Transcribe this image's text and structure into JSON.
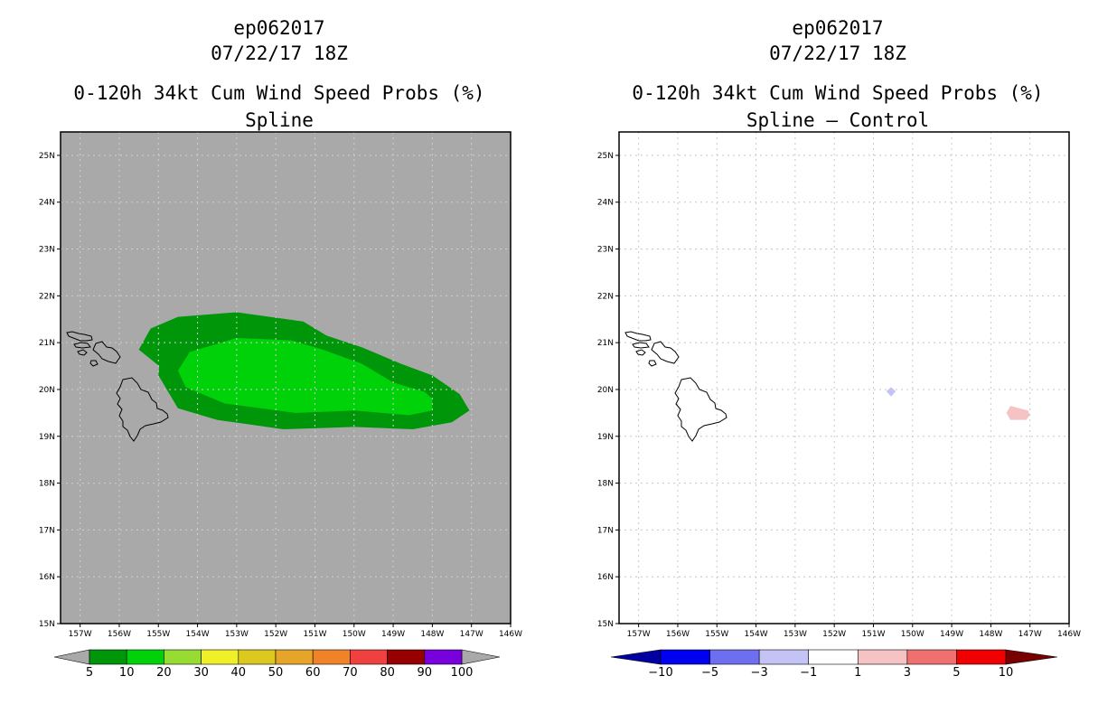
{
  "left_panel": {
    "line1": "ep062017",
    "line2": "07/22/17 18Z",
    "line3": "0-120h 34kt Cum Wind Speed Probs (%)",
    "line4": "Spline"
  },
  "right_panel": {
    "line1": "ep062017",
    "line2": "07/22/17 18Z",
    "line3": "0-120h 34kt Cum Wind Speed Probs (%)",
    "line4": "Spline – Control"
  },
  "chart_data": [
    {
      "type": "heatmap",
      "title": "0-120h 34kt Cum Wind Speed Probs (%) Spline",
      "x_ticks": [
        "157W",
        "156W",
        "155W",
        "154W",
        "153W",
        "152W",
        "151W",
        "150W",
        "149W",
        "148W",
        "147W",
        "146W"
      ],
      "y_ticks": [
        "15N",
        "16N",
        "17N",
        "18N",
        "19N",
        "20N",
        "21N",
        "22N",
        "23N",
        "24N",
        "25N"
      ],
      "xlim": [
        -157.5,
        -146
      ],
      "ylim": [
        15,
        25.5
      ],
      "grid": true,
      "background": "#a9a9a9",
      "colorbar": {
        "labels": [
          "5",
          "10",
          "20",
          "30",
          "40",
          "50",
          "60",
          "70",
          "80",
          "90",
          "100"
        ],
        "colors": [
          "#00960a",
          "#00d20a",
          "#96dc32",
          "#f0f028",
          "#dcc81e",
          "#e6a528",
          "#f08228",
          "#f04141",
          "#960000",
          "#7800dc"
        ],
        "extend_color": "#a9a9a9"
      },
      "contours": [
        {
          "level": "5-10%",
          "color": "#00960a",
          "lonlat": [
            [
              -155,
              20.3
            ],
            [
              -154.98,
              20.5
            ],
            [
              -155.5,
              20.85
            ],
            [
              -155.2,
              21.3
            ],
            [
              -154.5,
              21.55
            ],
            [
              -153,
              21.65
            ],
            [
              -151.3,
              21.45
            ],
            [
              -150.7,
              21.15
            ],
            [
              -149.8,
              20.9
            ],
            [
              -148.8,
              20.55
            ],
            [
              -148,
              20.3
            ],
            [
              -147.3,
              19.9
            ],
            [
              -147.05,
              19.55
            ],
            [
              -147.5,
              19.3
            ],
            [
              -148.5,
              19.15
            ],
            [
              -150,
              19.2
            ],
            [
              -151.8,
              19.15
            ],
            [
              -153.5,
              19.35
            ],
            [
              -154.5,
              19.6
            ]
          ]
        },
        {
          "level": "10-20%",
          "color": "#00d20a",
          "lonlat": [
            [
              -154.2,
              20.8
            ],
            [
              -153,
              21.1
            ],
            [
              -151.6,
              21.05
            ],
            [
              -150.8,
              20.85
            ],
            [
              -149.8,
              20.55
            ],
            [
              -149,
              20.15
            ],
            [
              -148.2,
              19.95
            ],
            [
              -148,
              19.8
            ],
            [
              -148,
              19.55
            ],
            [
              -148.6,
              19.45
            ],
            [
              -150,
              19.55
            ],
            [
              -151.5,
              19.5
            ],
            [
              -153.3,
              19.7
            ],
            [
              -154.3,
              20.05
            ],
            [
              -154.5,
              20.4
            ]
          ]
        }
      ]
    },
    {
      "type": "heatmap",
      "title": "0-120h 34kt Cum Wind Speed Probs (%) Spline – Control",
      "x_ticks": [
        "157W",
        "156W",
        "155W",
        "154W",
        "153W",
        "152W",
        "151W",
        "150W",
        "149W",
        "148W",
        "147W",
        "146W"
      ],
      "y_ticks": [
        "15N",
        "16N",
        "17N",
        "18N",
        "19N",
        "20N",
        "21N",
        "22N",
        "23N",
        "24N",
        "25N"
      ],
      "xlim": [
        -157.5,
        -146
      ],
      "ylim": [
        15,
        25.5
      ],
      "grid": true,
      "background": "#ffffff",
      "colorbar": {
        "labels": [
          "-10",
          "-5",
          "-3",
          "-1",
          "1",
          "3",
          "5",
          "10"
        ],
        "colors": [
          "#0000a0",
          "#0000f0",
          "#6e6ef0",
          "#c3c3f5",
          "#ffffff",
          "#f5c3c3",
          "#f07070",
          "#f00000",
          "#780000"
        ]
      },
      "contours": [
        {
          "level": "-3 to -1",
          "color": "#c3c3f5",
          "lonlat": [
            [
              -150.55,
              20.05
            ],
            [
              -150.43,
              19.96
            ],
            [
              -150.55,
              19.85
            ],
            [
              -150.67,
              19.96
            ]
          ]
        },
        {
          "level": "1 to 3",
          "color": "#f5c3c3",
          "lonlat": [
            [
              -147.5,
              19.65
            ],
            [
              -147.05,
              19.55
            ],
            [
              -147,
              19.45
            ],
            [
              -147.1,
              19.35
            ],
            [
              -147.5,
              19.35
            ],
            [
              -147.6,
              19.5
            ]
          ]
        }
      ]
    }
  ]
}
